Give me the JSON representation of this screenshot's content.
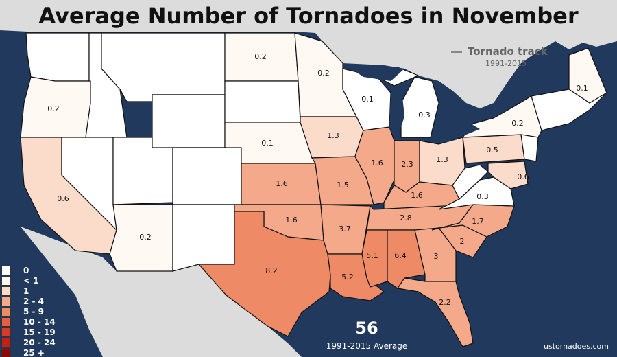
{
  "title": "Average Number of Tornadoes in November",
  "track_note": {
    "label": "Tornado track",
    "years": "1991-2015"
  },
  "total": {
    "value": "56",
    "caption": "1991-2015 Average"
  },
  "credit": "ustornadoes.com",
  "colors": {
    "ocean": "#21395c",
    "land": "#dcdcdc",
    "bin_0": "#ffffff",
    "bin_lt1": "#fff8f3",
    "bin_1": "#fbdcca",
    "bin_2_4": "#f4a98a",
    "bin_5_9": "#ee8a66",
    "bin_10_14": "#e65e43",
    "bin_15_19": "#d93a2a",
    "bin_20_24": "#c51e17",
    "bin_25_plus": "#8d0a0a"
  },
  "legend": [
    {
      "label": "0",
      "color": "#ffffff"
    },
    {
      "label": "< 1",
      "color": "#fff8f3"
    },
    {
      "label": "1",
      "color": "#fbdcca"
    },
    {
      "label": "2 - 4",
      "color": "#f4a98a"
    },
    {
      "label": "5 - 9",
      "color": "#ee8a66"
    },
    {
      "label": "10 - 14",
      "color": "#e65e43"
    },
    {
      "label": "15 - 19",
      "color": "#d93a2a"
    },
    {
      "label": "20 - 24",
      "color": "#c51e17"
    },
    {
      "label": "25 +",
      "color": "#8d0a0a"
    }
  ],
  "state_values": [
    {
      "state": "Maine",
      "value": "0.1"
    },
    {
      "state": "North Dakota",
      "value": "0.2"
    },
    {
      "state": "Minnesota",
      "value": "0.2"
    },
    {
      "state": "Oregon",
      "value": "0.2"
    },
    {
      "state": "Wisconsin",
      "value": "0.1"
    },
    {
      "state": "Michigan",
      "value": "0.3"
    },
    {
      "state": "New York",
      "value": "0.2"
    },
    {
      "state": "Iowa",
      "value": "1.3"
    },
    {
      "state": "Nebraska",
      "value": "0.1"
    },
    {
      "state": "Illinois",
      "value": "1.6"
    },
    {
      "state": "Indiana",
      "value": "2.3"
    },
    {
      "state": "Ohio",
      "value": "1.3"
    },
    {
      "state": "Pennsylvania",
      "value": "0.5"
    },
    {
      "state": "Maryland",
      "value": "0.6"
    },
    {
      "state": "Kansas",
      "value": "1.6"
    },
    {
      "state": "Missouri",
      "value": "1.5"
    },
    {
      "state": "Kentucky",
      "value": "1.6"
    },
    {
      "state": "Virginia",
      "value": "0.3"
    },
    {
      "state": "California",
      "value": "0.6"
    },
    {
      "state": "Oklahoma",
      "value": "1.6"
    },
    {
      "state": "Arkansas",
      "value": "3.7"
    },
    {
      "state": "Tennessee",
      "value": "2.8"
    },
    {
      "state": "North Carolina",
      "value": "1.7"
    },
    {
      "state": "South Carolina",
      "value": "2"
    },
    {
      "state": "Arizona",
      "value": "0.2"
    },
    {
      "state": "Texas",
      "value": "8.2"
    },
    {
      "state": "Mississippi",
      "value": "5.1"
    },
    {
      "state": "Alabama",
      "value": "6.4"
    },
    {
      "state": "Georgia",
      "value": "3"
    },
    {
      "state": "Louisiana",
      "value": "5.2"
    },
    {
      "state": "Florida",
      "value": "2.2"
    }
  ]
}
